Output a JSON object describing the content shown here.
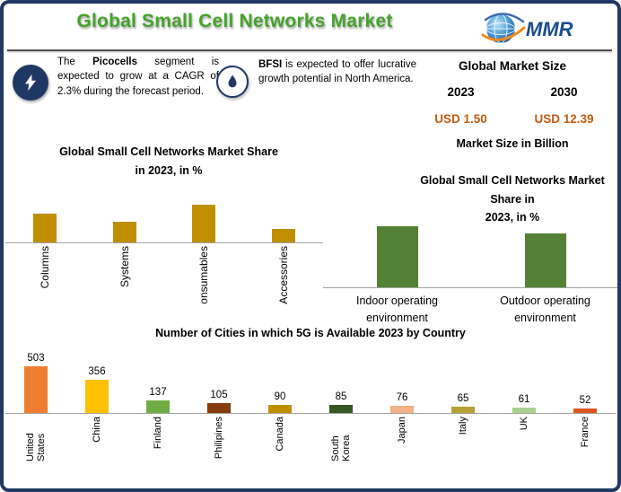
{
  "header": {
    "title": "Global Small Cell Networks Market",
    "title_color": "#45a32c",
    "logo_text": "MMR"
  },
  "callouts": [
    {
      "icon": "lightning-icon",
      "text_pre": "The ",
      "text_bold": "Picocells",
      "text_post": " segment is expected to grow at a CAGR of 2.3% during the forecast period."
    },
    {
      "icon": "flame-icon",
      "text_pre": "",
      "text_bold": "BFSI",
      "text_post": " is expected to offer lucrative growth potential in North America."
    }
  ],
  "market_size": {
    "title": "Global Market Size",
    "years": [
      "2023",
      "2030"
    ],
    "values": [
      "USD 1.50",
      "USD 12.39"
    ],
    "unit_note": "Market Size in Billion",
    "value_color": "#C55A11"
  },
  "chart_data": [
    {
      "type": "bar",
      "title": "Global Small Cell Networks Market Share in 2023, in %",
      "title_lines": [
        "Global Small Cell Networks Market Share",
        "in 2023, in %"
      ],
      "categories": [
        "Columns",
        "Systems",
        "onsumables",
        "Accessories"
      ],
      "values": [
        32,
        23,
        42,
        15
      ],
      "bar_color": "#BF8F00",
      "show_values": false,
      "rotate_labels": true,
      "grid": false,
      "legend": false
    },
    {
      "type": "bar",
      "title": "Global Small Cell Networks Market Share in 2023, in %",
      "title_lines": [
        "Global Small Cell Networks Market Share in",
        "2023, in %"
      ],
      "categories": [
        "Indoor operating environment",
        "Outdoor operating environment"
      ],
      "values": [
        53,
        47
      ],
      "bar_color": "#538135",
      "show_values": false,
      "rotate_labels": false,
      "grid": false,
      "legend": false
    },
    {
      "type": "bar",
      "title": "Number of Cities in which 5G is Available 2023 by Country",
      "categories": [
        "United States",
        "China",
        "Finland",
        "Philipines",
        "Canada",
        "South Korea",
        "Japan",
        "Italy",
        "UK",
        "France"
      ],
      "values": [
        503,
        356,
        137,
        105,
        90,
        85,
        76,
        65,
        61,
        52
      ],
      "bar_colors": [
        "#ED7D31",
        "#FFC000",
        "#70AD47",
        "#843C0C",
        "#BF8F00",
        "#375623",
        "#F4B183",
        "#B5A135",
        "#A9D18E",
        "#E0561A"
      ],
      "show_values": true,
      "rotate_labels": true,
      "grid": false,
      "legend": false
    }
  ]
}
